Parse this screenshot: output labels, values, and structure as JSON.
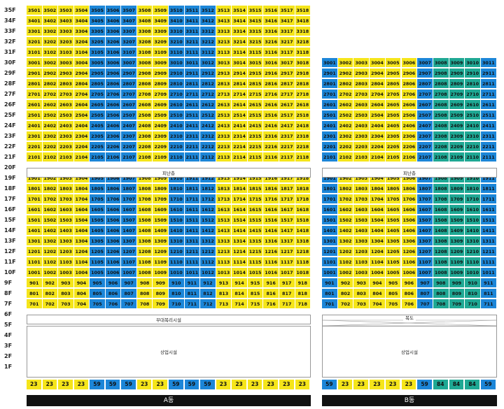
{
  "floor_labels": [
    "35F",
    "34F",
    "33F",
    "32F",
    "31F",
    "30F",
    "29F",
    "28F",
    "27F",
    "26F",
    "25F",
    "24F",
    "23F",
    "22F",
    "21F",
    "20F",
    "19F",
    "18F",
    "17F",
    "16F",
    "15F",
    "14F",
    "13F",
    "12F",
    "11F",
    "10F",
    "9F",
    "8F",
    "7F",
    "6F",
    "5F",
    "4F",
    "3F",
    "2F",
    "1F"
  ],
  "building_a": {
    "name": "A동",
    "refuge_label": "피난층",
    "amenity_label": "부대복리시설",
    "commercial_label": "상업시설",
    "column_colors": [
      "Y",
      "Y",
      "Y",
      "Y",
      "B",
      "B",
      "B",
      "Y",
      "Y",
      "B",
      "B",
      "B",
      "Y",
      "Y",
      "Y",
      "Y",
      "Y",
      "Y"
    ],
    "unit_sizes": [
      "23",
      "23",
      "23",
      "23",
      "59",
      "59",
      "59",
      "23",
      "23",
      "59",
      "59",
      "59",
      "23",
      "23",
      "23",
      "23",
      "23",
      "23"
    ]
  },
  "building_b": {
    "name": "B동",
    "refuge_label": "피난층",
    "corridor_label": "복도",
    "commercial_label": "상업시설",
    "column_colors": [
      "B",
      "Y",
      "Y",
      "Y",
      "Y",
      "Y",
      "B",
      "G",
      "G",
      "G",
      "B"
    ],
    "unit_sizes": [
      "59",
      "23",
      "23",
      "23",
      "23",
      "23",
      "59",
      "84",
      "84",
      "84",
      "59"
    ]
  },
  "colors": {
    "yellow": "#f5e51a",
    "blue": "#1c86d8",
    "teal": "#1fa894"
  }
}
